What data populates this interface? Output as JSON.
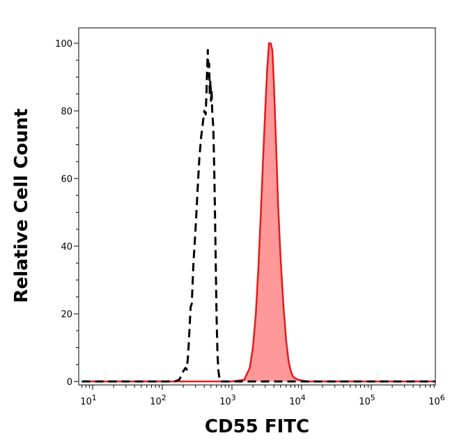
{
  "chart_data": {
    "type": "area",
    "title": "",
    "xlabel": "CD55 FITC",
    "ylabel": "Relative Cell Count",
    "x_scale": "log",
    "xlim": [
      7,
      1200000
    ],
    "ylim": [
      -1,
      100
    ],
    "grid": false,
    "legend": "none",
    "y_ticks": [
      {
        "value": 0,
        "label": "0"
      },
      {
        "value": 20,
        "label": "20"
      },
      {
        "value": 40,
        "label": "40"
      },
      {
        "value": 60,
        "label": "60"
      },
      {
        "value": 80,
        "label": "80"
      },
      {
        "value": 100,
        "label": "100"
      }
    ],
    "x_ticks": [
      {
        "value": 10,
        "base": "10",
        "exp": "1"
      },
      {
        "value": 100,
        "base": "10",
        "exp": "2"
      },
      {
        "value": 1000,
        "base": "10",
        "exp": "3"
      },
      {
        "value": 10000,
        "base": "10",
        "exp": "4"
      },
      {
        "value": 100000,
        "base": "10",
        "exp": "5"
      },
      {
        "value": 1000000,
        "base": "10",
        "exp": "6"
      }
    ],
    "series": [
      {
        "style": "dashed",
        "color": "#000000",
        "fill": "none",
        "x": [
          7,
          100,
          150,
          175,
          185,
          200,
          215,
          225,
          235,
          245,
          255,
          265,
          280,
          300,
          320,
          340,
          360,
          380,
          400,
          420,
          430,
          440,
          450,
          460,
          470,
          480,
          490,
          500,
          510,
          520,
          540,
          560,
          580,
          600,
          620,
          640,
          660,
          680,
          1000,
          1200000
        ],
        "y": [
          0,
          0,
          0,
          0.5,
          1.5,
          3,
          4,
          3.5,
          8,
          15,
          22,
          23,
          35,
          45,
          56,
          66,
          72,
          76,
          80,
          79,
          85,
          92,
          98,
          90,
          94,
          85,
          89,
          83,
          86,
          80,
          75,
          60,
          40,
          20,
          8,
          3,
          1,
          0,
          0,
          0
        ]
      },
      {
        "style": "solid",
        "color": "#e41a1a",
        "fill": "#ff9999",
        "x": [
          7,
          1000,
          1500,
          1800,
          2000,
          2200,
          2400,
          2600,
          2800,
          3000,
          3200,
          3400,
          3600,
          3800,
          4000,
          4300,
          4600,
          5000,
          5500,
          6000,
          6500,
          7000,
          7500,
          8000,
          9000,
          10000,
          12000,
          1200000
        ],
        "y": [
          0,
          0,
          0.5,
          4,
          10,
          20,
          34,
          50,
          66,
          80,
          92,
          100,
          100,
          98,
          88,
          70,
          52,
          36,
          22,
          12,
          6,
          3,
          1.5,
          1,
          0.5,
          0.3,
          0,
          0
        ]
      }
    ]
  }
}
